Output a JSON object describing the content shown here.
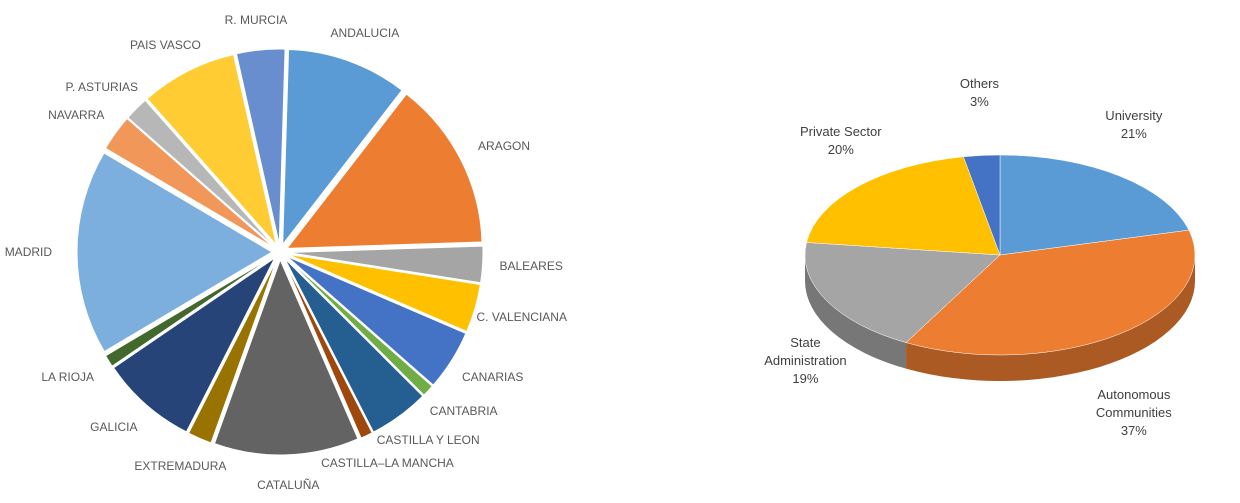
{
  "chart_data": [
    {
      "type": "pie",
      "exploded": true,
      "categories": [
        "ANDALUCIA",
        "ARAGON",
        "BALEARES",
        "C. VALENCIANA",
        "CANARIAS",
        "CANTABRIA",
        "CASTILLA Y LEON",
        "CASTILLA–LA MANCHA",
        "CATALUÑA",
        "EXTREMADURA",
        "GALICIA",
        "LA RIOJA",
        "MADRID",
        "NAVARRA",
        "P. ASTURIAS",
        "PAIS VASCO",
        "R. MURCIA"
      ],
      "values": [
        10,
        14,
        3,
        4,
        5,
        1,
        5,
        1,
        12,
        2,
        8,
        1,
        17,
        3,
        2,
        8,
        4
      ],
      "colors": [
        "#5b9bd5",
        "#ed7d31",
        "#a5a5a5",
        "#ffc000",
        "#4472c4",
        "#70ad47",
        "#255e91",
        "#9e480e",
        "#636363",
        "#997300",
        "#264478",
        "#43682b",
        "#7cafdd",
        "#f1975a",
        "#b7b7b7",
        "#ffcd33",
        "#698ed0"
      ]
    },
    {
      "type": "pie3d",
      "categories": [
        "University",
        "Autonomous Communities",
        "State Administration",
        "Private Sector",
        "Others"
      ],
      "values": [
        21,
        37,
        19,
        20,
        3
      ],
      "value_labels": [
        "21%",
        "37%",
        "19%",
        "20%",
        "3%"
      ],
      "colors": [
        "#5b9bd5",
        "#ed7d31",
        "#a5a5a5",
        "#ffc000",
        "#4472c4"
      ]
    }
  ]
}
